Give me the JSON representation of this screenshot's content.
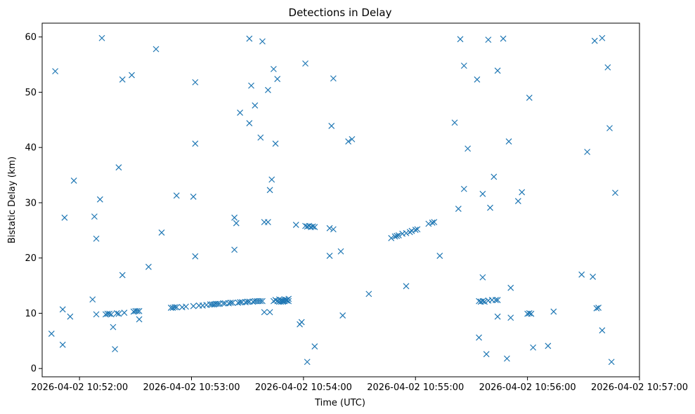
{
  "chart_data": {
    "type": "scatter",
    "title": "Detections in Delay",
    "xlabel": "Time (UTC)",
    "ylabel": "Bistatic Delay (km)",
    "marker": "x",
    "color": "#1f77b4",
    "grid": false,
    "legend": "none",
    "x_unit": "HH:MM:SS on 2026-04-02",
    "xlim": [
      "10:51:40",
      "10:57:00"
    ],
    "ylim": [
      -1.5,
      62.5
    ],
    "x_ticks": [
      "2026-04-02 10:52:00",
      "2026-04-02 10:53:00",
      "2026-04-02 10:54:00",
      "2026-04-02 10:55:00",
      "2026-04-02 10:56:00",
      "2026-04-02 10:57:00"
    ],
    "y_ticks": [
      "0",
      "10",
      "20",
      "30",
      "40",
      "50",
      "60"
    ],
    "points": [
      [
        "10:51:45",
        6.3
      ],
      [
        "10:51:47",
        53.8
      ],
      [
        "10:51:51",
        10.7
      ],
      [
        "10:51:51",
        4.3
      ],
      [
        "10:51:52",
        27.3
      ],
      [
        "10:51:55",
        9.4
      ],
      [
        "10:51:57",
        34.0
      ],
      [
        "10:52:07",
        12.5
      ],
      [
        "10:52:08",
        27.5
      ],
      [
        "10:52:09",
        23.5
      ],
      [
        "10:52:09",
        9.8
      ],
      [
        "10:52:11",
        30.6
      ],
      [
        "10:52:12",
        59.8
      ],
      [
        "10:52:14",
        9.8
      ],
      [
        "10:52:15",
        9.9
      ],
      [
        "10:52:16",
        9.9
      ],
      [
        "10:52:17",
        9.8
      ],
      [
        "10:52:18",
        7.5
      ],
      [
        "10:52:19",
        3.5
      ],
      [
        "10:52:20",
        10.0
      ],
      [
        "10:52:21",
        36.4
      ],
      [
        "10:52:21",
        9.9
      ],
      [
        "10:52:23",
        52.3
      ],
      [
        "10:52:23",
        16.9
      ],
      [
        "10:52:24",
        10.1
      ],
      [
        "10:52:28",
        53.1
      ],
      [
        "10:52:29",
        10.3
      ],
      [
        "10:52:30",
        10.4
      ],
      [
        "10:52:31",
        10.4
      ],
      [
        "10:52:32",
        10.4
      ],
      [
        "10:52:32",
        8.9
      ],
      [
        "10:52:37",
        18.4
      ],
      [
        "10:52:41",
        57.8
      ],
      [
        "10:52:44",
        24.6
      ],
      [
        "10:52:49",
        11.0
      ],
      [
        "10:52:50",
        11.0
      ],
      [
        "10:52:51",
        11.1
      ],
      [
        "10:52:52",
        11.1
      ],
      [
        "10:52:52",
        31.3
      ],
      [
        "10:52:55",
        11.1
      ],
      [
        "10:52:57",
        11.2
      ],
      [
        "10:53:01",
        11.3
      ],
      [
        "10:53:01",
        31.1
      ],
      [
        "10:53:02",
        20.3
      ],
      [
        "10:53:02",
        51.8
      ],
      [
        "10:53:02",
        40.7
      ],
      [
        "10:53:04",
        11.4
      ],
      [
        "10:53:06",
        11.4
      ],
      [
        "10:53:08",
        11.5
      ],
      [
        "10:53:10",
        11.6
      ],
      [
        "10:53:11",
        11.6
      ],
      [
        "10:53:12",
        11.6
      ],
      [
        "10:53:13",
        11.7
      ],
      [
        "10:53:14",
        11.7
      ],
      [
        "10:53:15",
        11.7
      ],
      [
        "10:53:17",
        11.8
      ],
      [
        "10:53:18",
        11.8
      ],
      [
        "10:53:20",
        11.8
      ],
      [
        "10:53:21",
        11.9
      ],
      [
        "10:53:22",
        11.9
      ],
      [
        "10:53:23",
        27.3
      ],
      [
        "10:53:23",
        21.5
      ],
      [
        "10:53:24",
        26.3
      ],
      [
        "10:53:25",
        11.9
      ],
      [
        "10:53:26",
        12.0
      ],
      [
        "10:53:26",
        46.3
      ],
      [
        "10:53:27",
        12.0
      ],
      [
        "10:53:29",
        12.0
      ],
      [
        "10:53:30",
        12.1
      ],
      [
        "10:53:31",
        12.1
      ],
      [
        "10:53:31",
        59.7
      ],
      [
        "10:53:31",
        44.4
      ],
      [
        "10:53:32",
        51.2
      ],
      [
        "10:53:33",
        12.1
      ],
      [
        "10:53:34",
        47.6
      ],
      [
        "10:53:34",
        12.2
      ],
      [
        "10:53:35",
        12.2
      ],
      [
        "10:53:36",
        12.2
      ],
      [
        "10:53:37",
        41.8
      ],
      [
        "10:53:37",
        12.2
      ],
      [
        "10:53:38",
        12.2
      ],
      [
        "10:53:38",
        59.2
      ],
      [
        "10:53:39",
        10.2
      ],
      [
        "10:53:39",
        26.5
      ],
      [
        "10:53:41",
        26.5
      ],
      [
        "10:53:41",
        50.4
      ],
      [
        "10:53:42",
        10.2
      ],
      [
        "10:53:42",
        32.3
      ],
      [
        "10:53:43",
        34.2
      ],
      [
        "10:53:44",
        12.2
      ],
      [
        "10:53:44",
        54.2
      ],
      [
        "10:53:45",
        40.7
      ],
      [
        "10:53:45",
        12.4
      ],
      [
        "10:53:46",
        52.4
      ],
      [
        "10:53:46",
        12.2
      ],
      [
        "10:53:47",
        12.1
      ],
      [
        "10:53:47",
        12.5
      ],
      [
        "10:53:48",
        12.4
      ],
      [
        "10:53:48",
        12.1
      ],
      [
        "10:53:49",
        12.3
      ],
      [
        "10:53:49",
        12.1
      ],
      [
        "10:53:50",
        12.2
      ],
      [
        "10:53:50",
        12.5
      ],
      [
        "10:53:51",
        12.3
      ],
      [
        "10:53:51",
        12.4
      ],
      [
        "10:53:52",
        12.2
      ],
      [
        "10:53:52",
        12.6
      ],
      [
        "10:53:56",
        26.0
      ],
      [
        "10:53:58",
        8.0
      ],
      [
        "10:53:59",
        8.4
      ],
      [
        "10:54:01",
        25.8
      ],
      [
        "10:54:01",
        55.2
      ],
      [
        "10:54:02",
        25.7
      ],
      [
        "10:54:03",
        25.8
      ],
      [
        "10:54:02",
        1.2
      ],
      [
        "10:54:04",
        25.6
      ],
      [
        "10:54:05",
        25.7
      ],
      [
        "10:54:06",
        25.6
      ],
      [
        "10:54:06",
        4.0
      ],
      [
        "10:54:14",
        25.4
      ],
      [
        "10:54:14",
        20.4
      ],
      [
        "10:54:15",
        43.9
      ],
      [
        "10:54:16",
        25.2
      ],
      [
        "10:54:16",
        52.5
      ],
      [
        "10:54:20",
        21.2
      ],
      [
        "10:54:21",
        9.6
      ],
      [
        "10:54:24",
        41.1
      ],
      [
        "10:54:26",
        41.5
      ],
      [
        "10:54:35",
        13.5
      ],
      [
        "10:54:47",
        23.6
      ],
      [
        "10:54:49",
        23.9
      ],
      [
        "10:54:50",
        24.0
      ],
      [
        "10:54:51",
        24.1
      ],
      [
        "10:54:53",
        24.4
      ],
      [
        "10:54:55",
        24.5
      ],
      [
        "10:54:55",
        14.9
      ],
      [
        "10:54:57",
        24.7
      ],
      [
        "10:54:58",
        24.9
      ],
      [
        "10:55:00",
        25.1
      ],
      [
        "10:55:01",
        25.2
      ],
      [
        "10:55:07",
        26.2
      ],
      [
        "10:55:09",
        26.4
      ],
      [
        "10:55:10",
        26.5
      ],
      [
        "10:55:13",
        20.4
      ],
      [
        "10:55:21",
        44.5
      ],
      [
        "10:55:23",
        28.9
      ],
      [
        "10:55:24",
        59.6
      ],
      [
        "10:55:26",
        54.8
      ],
      [
        "10:55:26",
        32.5
      ],
      [
        "10:55:28",
        39.8
      ],
      [
        "10:55:33",
        52.3
      ],
      [
        "10:55:34",
        12.2
      ],
      [
        "10:55:34",
        5.6
      ],
      [
        "10:55:35",
        12.1
      ],
      [
        "10:55:36",
        12.2
      ],
      [
        "10:55:36",
        31.6
      ],
      [
        "10:55:36",
        16.5
      ],
      [
        "10:55:37",
        12.1
      ],
      [
        "10:55:38",
        2.6
      ],
      [
        "10:55:39",
        12.3
      ],
      [
        "10:55:39",
        59.5
      ],
      [
        "10:55:40",
        29.1
      ],
      [
        "10:55:41",
        12.4
      ],
      [
        "10:55:42",
        34.7
      ],
      [
        "10:55:43",
        12.4
      ],
      [
        "10:55:44",
        12.4
      ],
      [
        "10:55:44",
        9.4
      ],
      [
        "10:55:44",
        53.9
      ],
      [
        "10:55:47",
        59.7
      ],
      [
        "10:55:49",
        1.8
      ],
      [
        "10:55:50",
        41.1
      ],
      [
        "10:55:51",
        14.6
      ],
      [
        "10:55:51",
        9.2
      ],
      [
        "10:55:55",
        30.3
      ],
      [
        "10:55:57",
        31.9
      ],
      [
        "10:56:00",
        9.9
      ],
      [
        "10:56:01",
        10.0
      ],
      [
        "10:56:01",
        49.0
      ],
      [
        "10:56:02",
        9.9
      ],
      [
        "10:56:03",
        3.8
      ],
      [
        "10:56:11",
        4.1
      ],
      [
        "10:56:14",
        10.3
      ],
      [
        "10:56:29",
        17.0
      ],
      [
        "10:56:32",
        39.2
      ],
      [
        "10:56:35",
        16.6
      ],
      [
        "10:56:36",
        59.3
      ],
      [
        "10:56:37",
        10.9
      ],
      [
        "10:56:38",
        11.0
      ],
      [
        "10:56:40",
        59.8
      ],
      [
        "10:56:40",
        6.9
      ],
      [
        "10:56:43",
        54.5
      ],
      [
        "10:56:44",
        43.5
      ],
      [
        "10:56:45",
        1.2
      ],
      [
        "10:56:47",
        31.8
      ]
    ]
  }
}
